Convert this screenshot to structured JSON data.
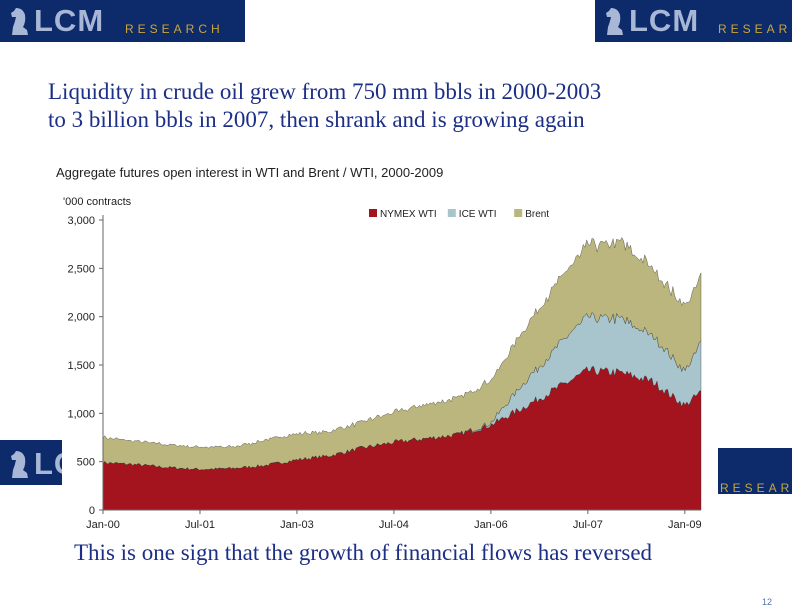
{
  "brand": {
    "logo_text": "LCM",
    "logo_sub": "RESEARCH",
    "logo_sub_partial": "RESEAR",
    "logo_color": "#0d2b6b",
    "accent": "#c9a63a"
  },
  "slide": {
    "title_line1": "Liquidity in crude oil grew from 750 mm bbls in 2000-2003",
    "title_line2": "to 3 billion bbls in 2007, then shrank and is growing again",
    "subtitle": "Aggregate futures open interest in WTI and  Brent / WTI, 2000-2009",
    "footer": "This is one sign that the growth of financial flows has reversed",
    "page_number": "12"
  },
  "chart_data": {
    "type": "area",
    "stacked": true,
    "unit_label": "'000 contracts",
    "ylim": [
      0,
      3000
    ],
    "yticks": [
      0,
      500,
      1000,
      1500,
      2000,
      2500,
      3000
    ],
    "ytick_labels": [
      "0",
      "500",
      "1,000",
      "1,500",
      "2,000",
      "2,500",
      "3,000"
    ],
    "xticks": [
      "2000-01",
      "2001-07",
      "2003-01",
      "2004-07",
      "2006-01",
      "2007-07",
      "2009-01"
    ],
    "xtick_labels": [
      "Jan-00",
      "Jul-01",
      "Jan-03",
      "Jul-04",
      "Jan-06",
      "Jul-07",
      "Jan-09"
    ],
    "x": [
      "2000-01",
      "2000-07",
      "2001-01",
      "2001-07",
      "2002-01",
      "2002-07",
      "2003-01",
      "2003-07",
      "2004-01",
      "2004-07",
      "2005-01",
      "2005-07",
      "2006-01",
      "2006-07",
      "2007-01",
      "2007-07",
      "2008-01",
      "2008-07",
      "2009-01",
      "2009-04"
    ],
    "legend_position": "top",
    "grid": false,
    "series": [
      {
        "name": "NYMEX WTI",
        "color": "#a3141e",
        "values": [
          490,
          470,
          440,
          420,
          430,
          460,
          520,
          560,
          640,
          700,
          740,
          780,
          880,
          1060,
          1250,
          1440,
          1420,
          1330,
          1080,
          1220
        ]
      },
      {
        "name": "ICE WTI",
        "color": "#a8c4cc",
        "values": [
          0,
          0,
          0,
          0,
          0,
          0,
          0,
          0,
          0,
          0,
          0,
          0,
          20,
          250,
          420,
          560,
          560,
          470,
          350,
          510
        ]
      },
      {
        "name": "Brent",
        "color": "#bab67d",
        "values": [
          260,
          240,
          240,
          230,
          220,
          260,
          270,
          250,
          270,
          310,
          350,
          380,
          440,
          550,
          650,
          740,
          800,
          700,
          670,
          700
        ]
      }
    ]
  }
}
